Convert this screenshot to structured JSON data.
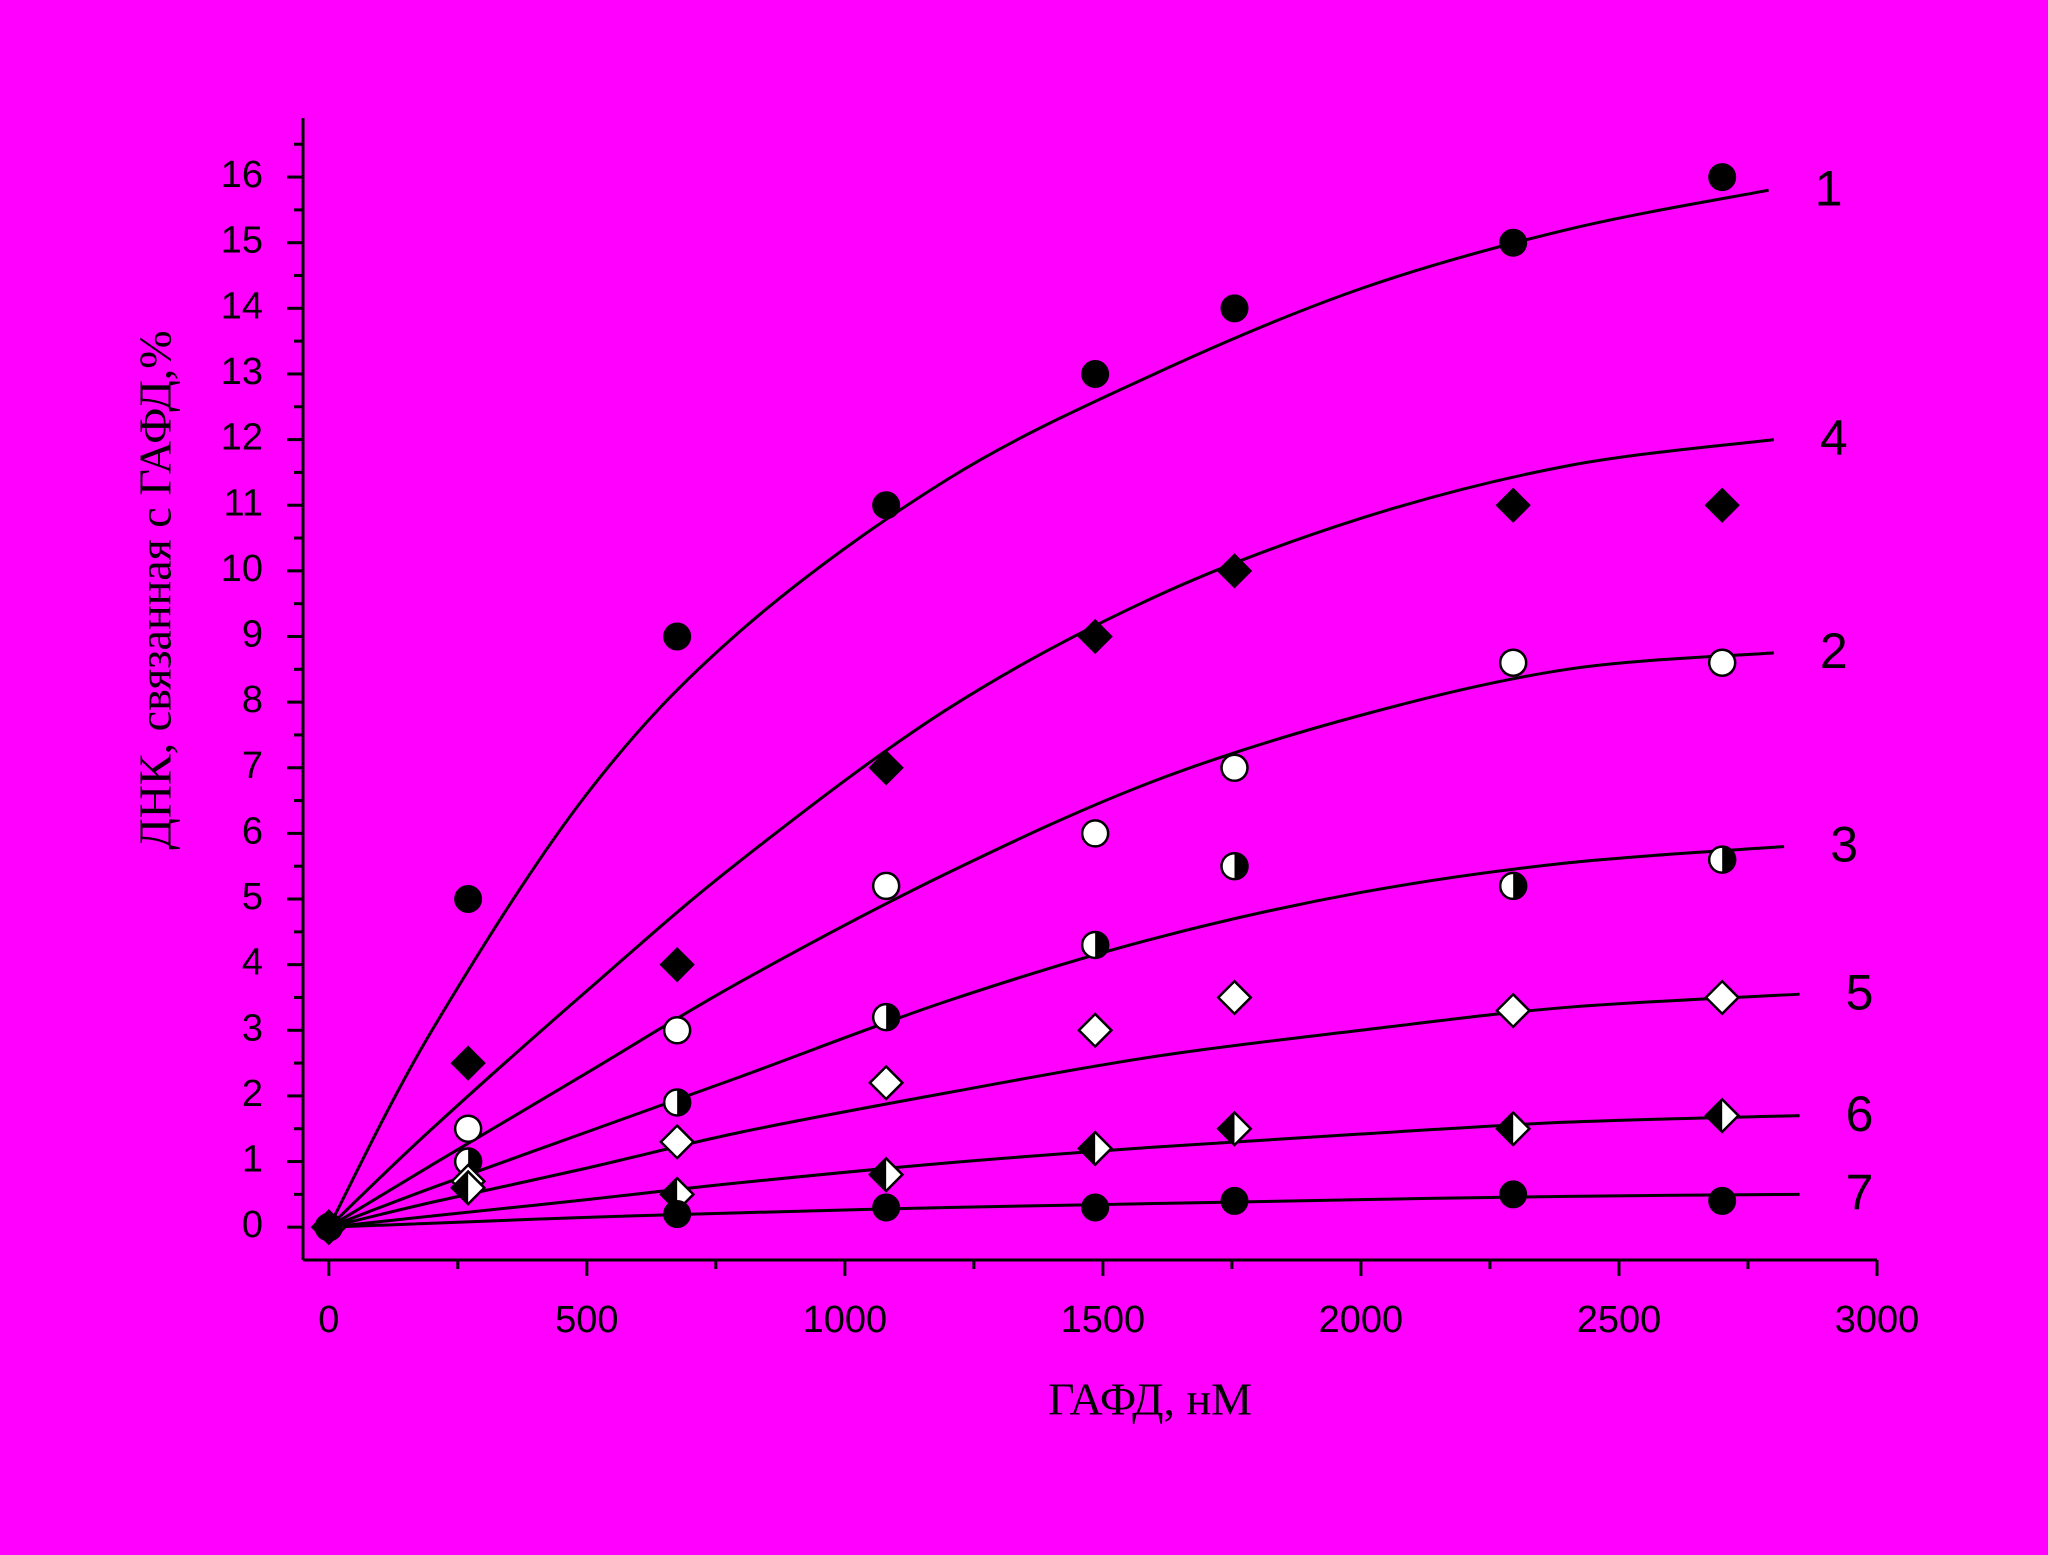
{
  "chart_data": {
    "type": "scatter",
    "background": "#ff00ff",
    "x_label": "ГАФД, нМ",
    "y_label": "ДНК, связанная с ГАФД,%",
    "xlim": [
      -50,
      3000
    ],
    "ylim": [
      -0.5,
      16.9
    ],
    "xticks": [
      0,
      500,
      1000,
      1500,
      2000,
      2500,
      3000
    ],
    "xminorticks": [
      250,
      750,
      1250,
      1750,
      2250,
      2750
    ],
    "yticks": [
      0,
      1,
      2,
      3,
      4,
      5,
      6,
      7,
      8,
      9,
      10,
      11,
      12,
      13,
      14,
      15,
      16
    ],
    "yminorticks": [
      0.5,
      1.5,
      2.5,
      3.5,
      4.5,
      5.5,
      6.5,
      7.5,
      8.5,
      9.5,
      10.5,
      11.5,
      12.5,
      13.5,
      14.5,
      15.5,
      16.5
    ],
    "x": [
      0,
      270,
      675,
      1080,
      1485,
      1755,
      2295,
      2700
    ],
    "series": [
      {
        "name": "1",
        "color": "#000000",
        "marker": "circle",
        "fill": "full",
        "values": [
          0,
          5,
          9,
          11,
          13,
          14,
          15,
          16
        ],
        "fit": {
          "x": [
            0,
            200,
            500,
            800,
            1200,
            1600,
            2000,
            2400,
            2790
          ],
          "values": [
            0,
            3.0,
            6.6,
            9.1,
            11.4,
            13.0,
            14.3,
            15.2,
            15.8
          ]
        }
      },
      {
        "name": "4",
        "color": "#000000",
        "marker": "diamond",
        "fill": "full",
        "values": [
          0,
          2.5,
          4,
          7,
          9,
          10,
          11,
          11
        ],
        "fit": {
          "x": [
            0,
            200,
            500,
            800,
            1200,
            1600,
            2000,
            2400,
            2800
          ],
          "values": [
            0,
            1.5,
            3.6,
            5.6,
            7.9,
            9.6,
            10.8,
            11.6,
            12.0
          ]
        }
      },
      {
        "name": "2",
        "color": "#000000",
        "marker": "circle",
        "fill": "none",
        "values": [
          0,
          1.5,
          3,
          5.2,
          6,
          7,
          8.6,
          8.6
        ],
        "fit": {
          "x": [
            0,
            200,
            500,
            800,
            1200,
            1600,
            2000,
            2400,
            2800
          ],
          "values": [
            0,
            0.95,
            2.35,
            3.75,
            5.4,
            6.8,
            7.8,
            8.5,
            8.75
          ]
        }
      },
      {
        "name": "3",
        "color": "#000000",
        "marker": "circle",
        "fill": "half-right",
        "values": [
          0,
          1,
          1.9,
          3.2,
          4.3,
          5.5,
          5.2,
          5.6
        ],
        "fit": {
          "x": [
            0,
            200,
            500,
            800,
            1200,
            1600,
            2000,
            2400,
            2820
          ],
          "values": [
            0,
            0.6,
            1.45,
            2.3,
            3.45,
            4.4,
            5.1,
            5.55,
            5.8
          ]
        }
      },
      {
        "name": "5",
        "color": "#000000",
        "marker": "diamond",
        "fill": "none",
        "values": [
          0,
          0.7,
          1.3,
          2.2,
          3,
          3.5,
          3.3,
          3.5
        ],
        "fit": {
          "x": [
            0,
            200,
            500,
            800,
            1200,
            1600,
            2000,
            2400,
            2850
          ],
          "values": [
            0,
            0.38,
            0.9,
            1.45,
            2.05,
            2.6,
            3.0,
            3.35,
            3.55
          ]
        }
      },
      {
        "name": "6",
        "color": "#000000",
        "marker": "diamond",
        "fill": "half-left",
        "values": [
          0,
          0.6,
          0.5,
          0.8,
          1.2,
          1.5,
          1.5,
          1.7
        ],
        "fit": {
          "x": [
            0,
            200,
            500,
            800,
            1200,
            1600,
            2000,
            2400,
            2850
          ],
          "values": [
            0,
            0.17,
            0.42,
            0.68,
            0.98,
            1.22,
            1.42,
            1.6,
            1.7
          ]
        }
      },
      {
        "name": "7",
        "color": "#000000",
        "marker": "circle",
        "fill": "full",
        "values": [
          0,
          null,
          0.2,
          0.3,
          0.3,
          0.4,
          0.5,
          0.4
        ],
        "fit": {
          "x": [
            0,
            200,
            500,
            800,
            1200,
            1600,
            2000,
            2400,
            2850
          ],
          "values": [
            0,
            0.06,
            0.15,
            0.22,
            0.3,
            0.36,
            0.42,
            0.47,
            0.5
          ]
        }
      }
    ]
  }
}
